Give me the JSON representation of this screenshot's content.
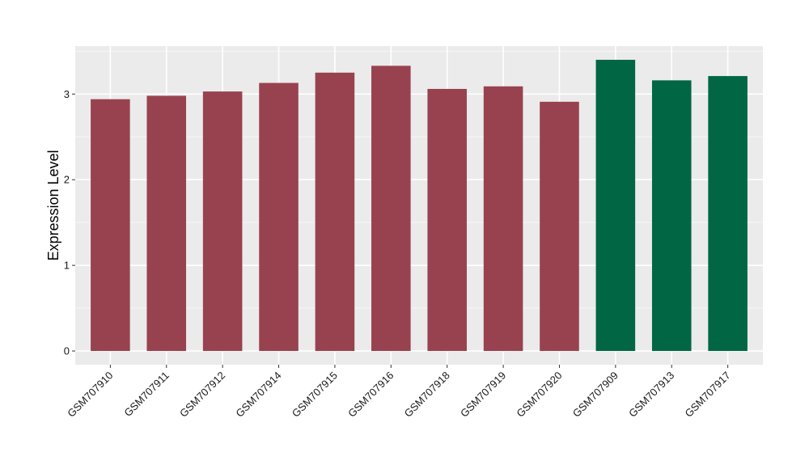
{
  "chart_data": {
    "type": "bar",
    "title": "",
    "xlabel": "",
    "ylabel": "Expression Level",
    "categories": [
      "GSM707910",
      "GSM707911",
      "GSM707912",
      "GSM707914",
      "GSM707915",
      "GSM707916",
      "GSM707918",
      "GSM707919",
      "GSM707920",
      "GSM707909",
      "GSM707913",
      "GSM707917"
    ],
    "values": [
      2.94,
      2.98,
      3.03,
      3.13,
      3.25,
      3.33,
      3.06,
      3.09,
      2.91,
      3.4,
      3.16,
      3.21
    ],
    "groups": [
      1,
      1,
      1,
      1,
      1,
      1,
      1,
      1,
      1,
      2,
      2,
      2
    ],
    "group_colors": {
      "1": "#99424f",
      "2": "#006644"
    },
    "ylim": [
      -0.16,
      3.56
    ],
    "yticks": [
      0,
      1,
      2,
      3
    ],
    "grid": true,
    "background": "#ebebeb",
    "legend": "none"
  }
}
